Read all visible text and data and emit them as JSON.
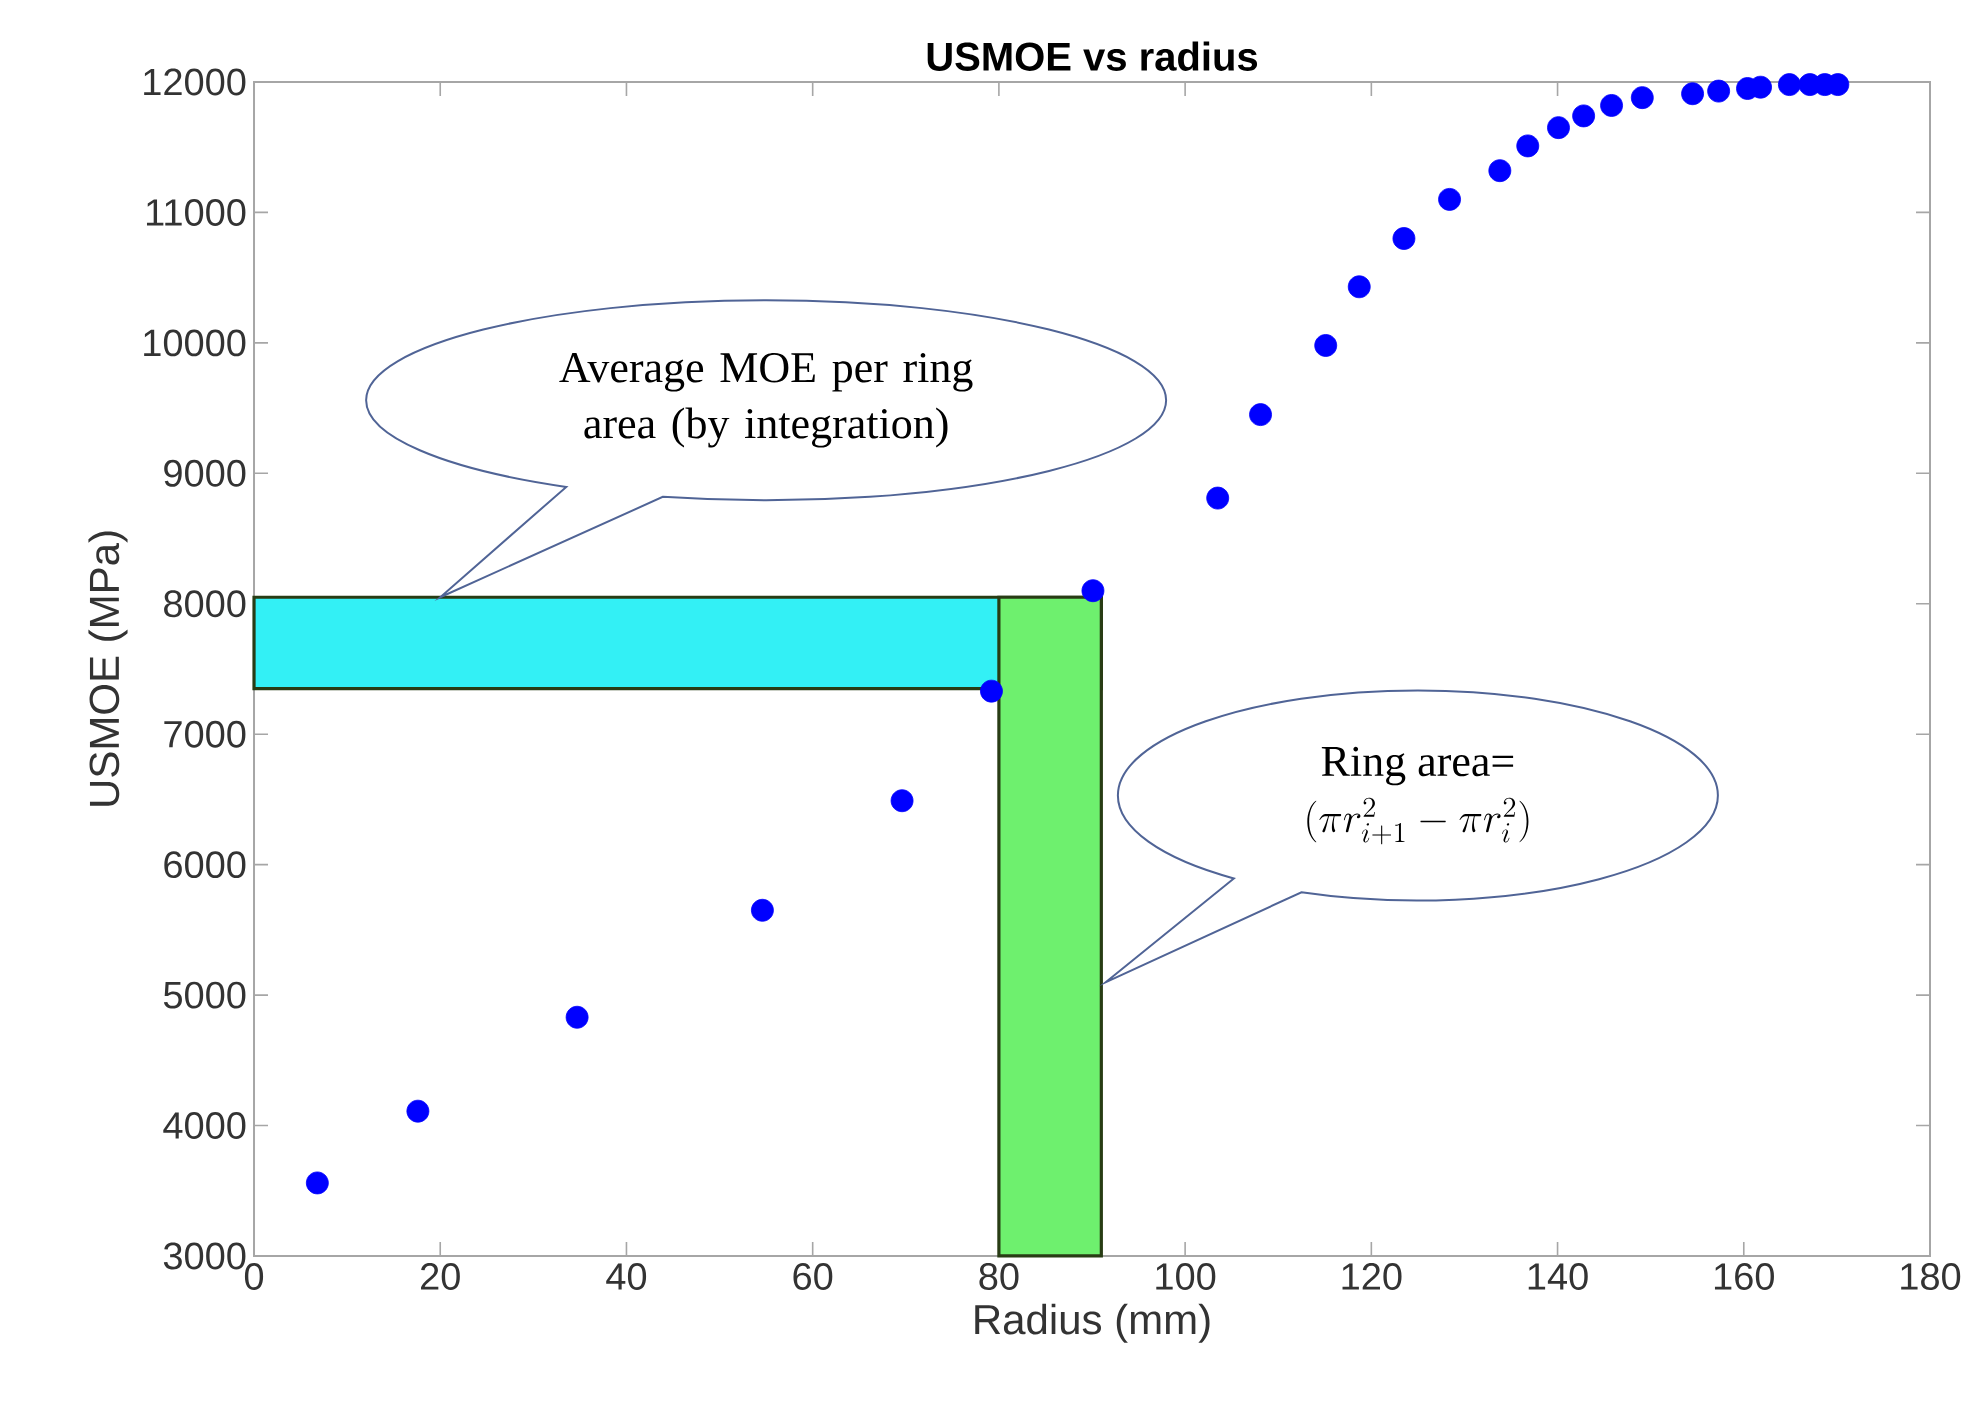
{
  "chart_data": {
    "type": "scatter",
    "title": "USMOE vs radius",
    "xlabel": "Radius (mm)",
    "ylabel": "USMOE (MPa)",
    "x": [
      6.8,
      17.6,
      34.7,
      54.6,
      69.6,
      79.2,
      90.1,
      103.5,
      108.1,
      115.1,
      118.7,
      123.5,
      128.4,
      133.8,
      136.8,
      140.1,
      142.8,
      145.8,
      149.1,
      154.5,
      157.3,
      160.4,
      161.8,
      164.9,
      167.1,
      168.7,
      170.1
    ],
    "series": [
      {
        "color": "#0000ff",
        "values": [
          3560,
          4110,
          4830,
          5650,
          6490,
          7330,
          8100,
          8810,
          9450,
          9980,
          10430,
          10800,
          11100,
          11320,
          11510,
          11650,
          11740,
          11820,
          11880,
          11910,
          11930,
          11950,
          11960,
          11980,
          11980,
          11980,
          11980
        ]
      }
    ],
    "xlim": [
      0,
      180
    ],
    "ylim": [
      3000,
      12000
    ],
    "xticks": [
      0,
      20,
      40,
      60,
      80,
      100,
      120,
      140,
      160,
      180
    ],
    "yticks": [
      3000,
      4000,
      5000,
      6000,
      7000,
      8000,
      9000,
      10000,
      11000,
      12000
    ],
    "marker": "circle",
    "grid": false,
    "bands": [
      {
        "axis": "y",
        "from": 7350,
        "to": 8050,
        "color": "#33f0f5"
      },
      {
        "axis": "x",
        "from": 80,
        "to": 91,
        "color": "#6ef06e"
      }
    ],
    "annotations": [
      "Average MOE per ring area (by integration)",
      "Ring area=",
      "(\\pi r_{i+1}^2-\\pi r_i^2)"
    ]
  }
}
